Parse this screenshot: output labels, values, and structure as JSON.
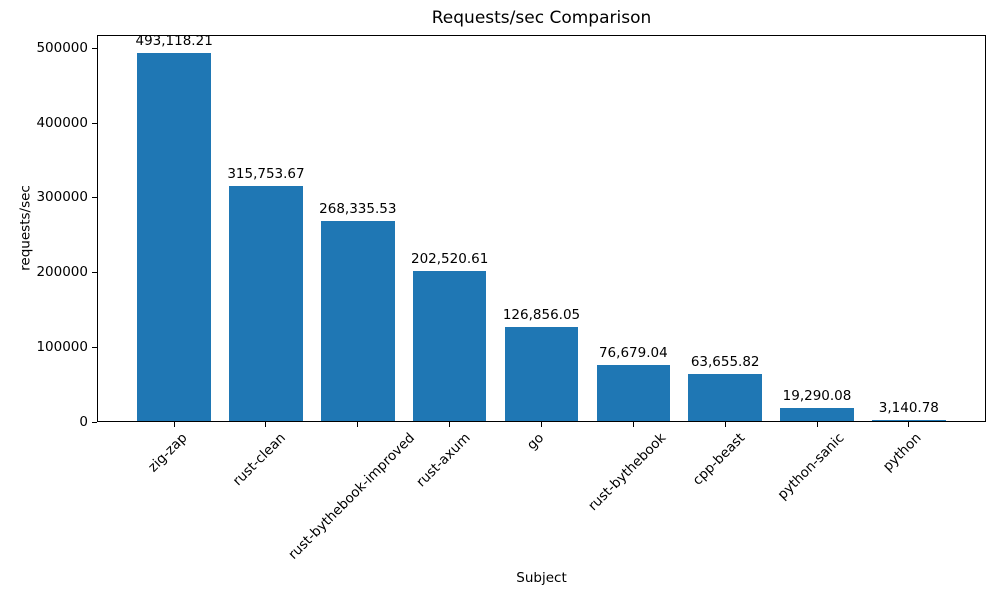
{
  "chart_data": {
    "type": "bar",
    "title": "Requests/sec Comparison",
    "xlabel": "Subject",
    "ylabel": "requests/sec",
    "categories": [
      "zig-zap",
      "rust-clean",
      "rust-bythebook-improved",
      "rust-axum",
      "go",
      "rust-bythebook",
      "cpp-beast",
      "python-sanic",
      "python"
    ],
    "values": [
      493118.21,
      315753.67,
      268335.53,
      202520.61,
      126856.05,
      76679.04,
      63655.82,
      19290.08,
      3140.78
    ],
    "bar_labels": [
      "493,118.21",
      "315,753.67",
      "268,335.53",
      "202,520.61",
      "126,856.05",
      "76,679.04",
      "63,655.82",
      "19,290.08",
      "3,140.78"
    ],
    "y_ticks": [
      0,
      100000,
      200000,
      300000,
      400000,
      500000
    ],
    "y_tick_labels": [
      "0",
      "100000",
      "200000",
      "300000",
      "400000",
      "500000"
    ],
    "ylim": [
      0,
      517774
    ],
    "x_tick_rotation": 45,
    "bar_color": "#1f77b4",
    "grid": false,
    "legend": null,
    "background": "#ffffff"
  }
}
